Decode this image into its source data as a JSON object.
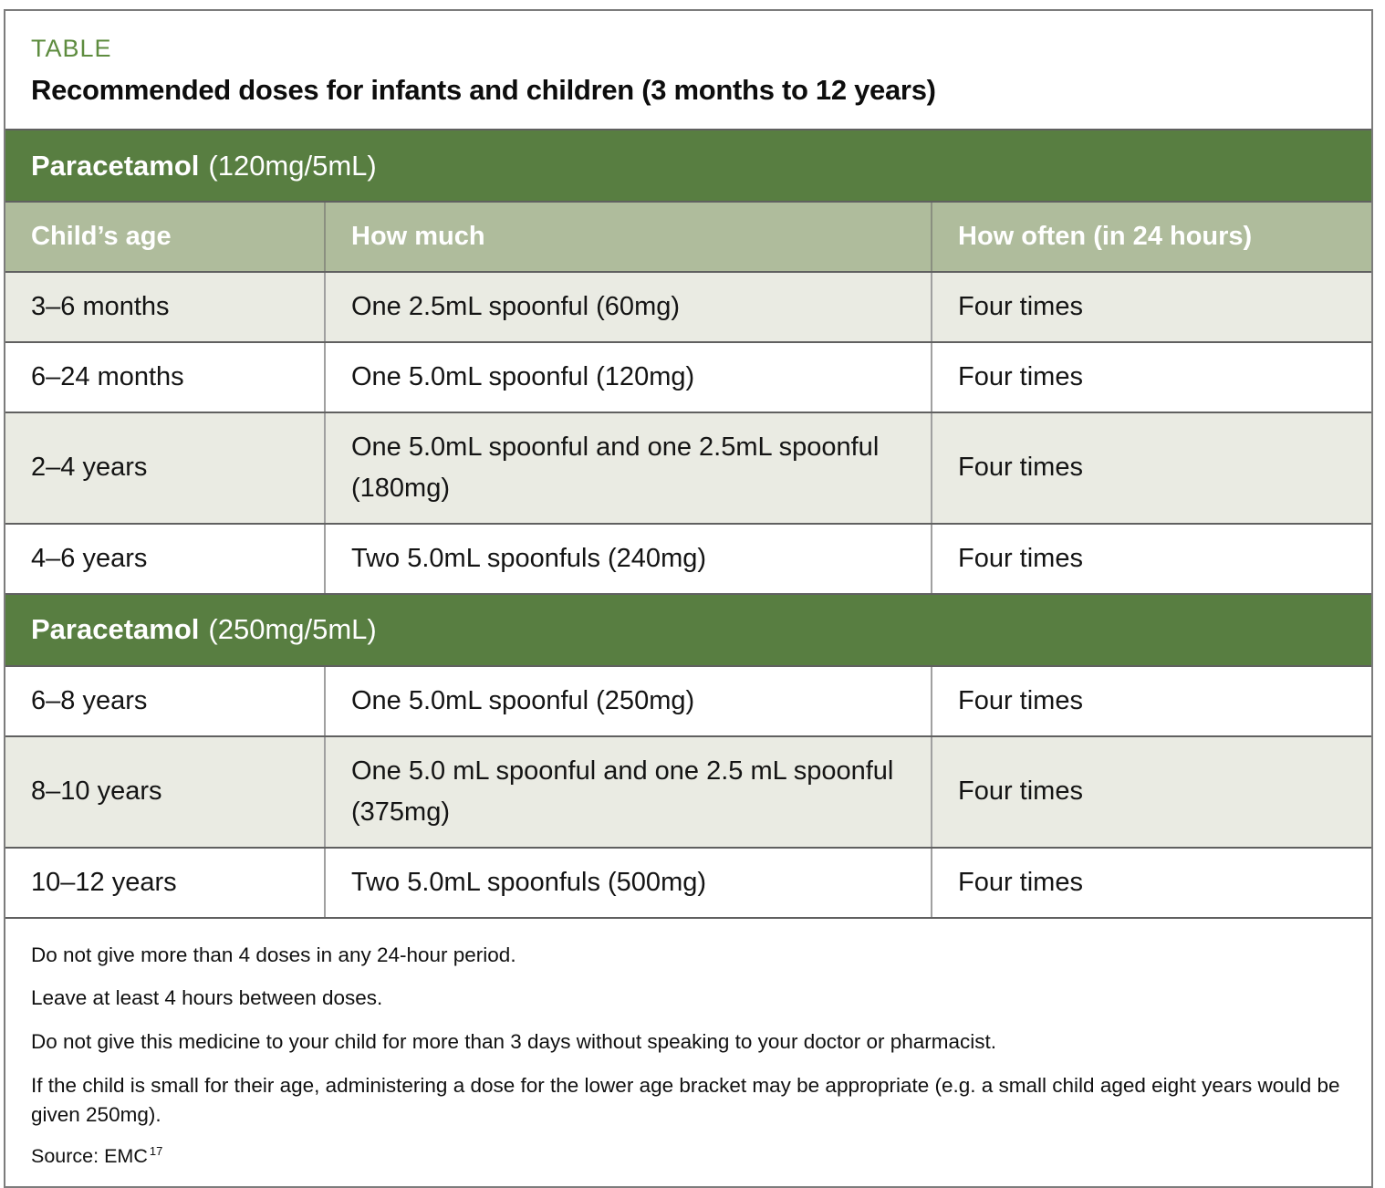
{
  "page": {
    "eyebrow": "TABLE",
    "title": "Recommended doses for infants and children (3 months to 12 years)"
  },
  "colors": {
    "section_bar_green": "#587e41",
    "column_header_sage": "#afbc9c",
    "shaded_row": "#eaebe3",
    "eyebrow_green": "#5e8c3f",
    "border_dark": "#606060",
    "border_light": "#a0a0a0"
  },
  "table": {
    "columns": {
      "age": "Child’s age",
      "amount": "How much",
      "often": "How often (in 24 hours)"
    },
    "sections": [
      {
        "drug": "Paracetamol",
        "strength": "(120mg/5mL)",
        "rows": [
          {
            "age": "3–6 months",
            "amount": "One 2.5mL spoonful (60mg)",
            "often": "Four times"
          },
          {
            "age": "6–24 months",
            "amount": "One 5.0mL spoonful (120mg)",
            "often": "Four times"
          },
          {
            "age": "2–4 years",
            "amount": "One 5.0mL spoonful and one 2.5mL spoonful (180mg)",
            "often": "Four times"
          },
          {
            "age": "4–6 years",
            "amount": "Two 5.0mL spoonfuls (240mg)",
            "often": "Four times"
          }
        ]
      },
      {
        "drug": "Paracetamol",
        "strength": "(250mg/5mL)",
        "rows": [
          {
            "age": "6–8 years",
            "amount": "One 5.0mL spoonful (250mg)",
            "often": "Four times"
          },
          {
            "age": "8–10 years",
            "amount": "One 5.0 mL spoonful and one 2.5 mL spoonful (375mg)",
            "often": "Four times"
          },
          {
            "age": "10–12 years",
            "amount": "Two 5.0mL spoonfuls (500mg)",
            "often": "Four times"
          }
        ]
      }
    ]
  },
  "footnotes": [
    "Do not give more than 4 doses in any 24-hour period.",
    "Leave at least 4 hours between doses.",
    "Do not give this medicine to your child for more than 3 days without speaking to your doctor or pharmacist.",
    "If the child is small for their age, administering a dose for the lower age bracket may be appropriate (e.g. a small child aged eight years would be given 250mg)."
  ],
  "source": {
    "label": "Source: EMC",
    "sup": "17"
  }
}
